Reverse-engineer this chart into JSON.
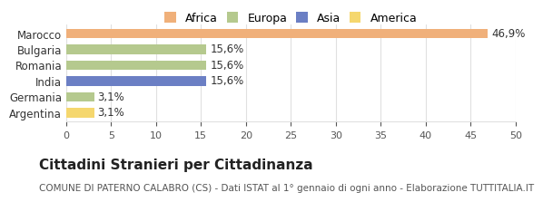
{
  "categories": [
    "Argentina",
    "Germania",
    "India",
    "Romania",
    "Bulgaria",
    "Marocco"
  ],
  "values": [
    3.1,
    3.1,
    15.6,
    15.6,
    15.6,
    46.9
  ],
  "labels": [
    "3,1%",
    "3,1%",
    "15,6%",
    "15,6%",
    "15,6%",
    "46,9%"
  ],
  "colors": [
    "#f5d76e",
    "#b5c98e",
    "#6b7fc4",
    "#b5c98e",
    "#b5c98e",
    "#f0b07a"
  ],
  "legend_items": [
    {
      "label": "Africa",
      "color": "#f0b07a"
    },
    {
      "label": "Europa",
      "color": "#b5c98e"
    },
    {
      "label": "Asia",
      "color": "#6b7fc4"
    },
    {
      "label": "America",
      "color": "#f5d76e"
    }
  ],
  "xlim": [
    0,
    50
  ],
  "xticks": [
    0,
    5,
    10,
    15,
    20,
    25,
    30,
    35,
    40,
    45,
    50
  ],
  "title": "Cittadini Stranieri per Cittadinanza",
  "subtitle": "COMUNE DI PATERNO CALABRO (CS) - Dati ISTAT al 1° gennaio di ogni anno - Elaborazione TUTTITALIA.IT",
  "title_fontsize": 11,
  "subtitle_fontsize": 7.5,
  "background_color": "#ffffff",
  "grid_color": "#e0e0e0"
}
